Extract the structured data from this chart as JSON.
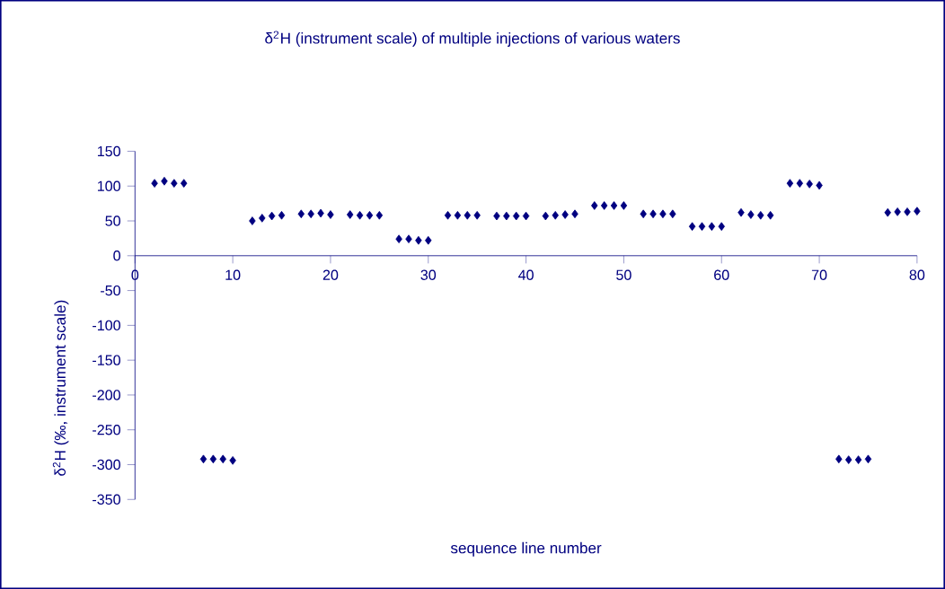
{
  "chart_data": {
    "type": "scatter",
    "title": "δ$^{2}$H (instrument scale) of multiple injections of various waters",
    "xlabel": "sequence line number",
    "ylabel": "δ$^{2}$H (‰, instrument scale)",
    "x": [
      2,
      3,
      4,
      5,
      7,
      8,
      9,
      10,
      12,
      13,
      14,
      15,
      17,
      18,
      19,
      20,
      22,
      23,
      24,
      25,
      27,
      28,
      29,
      30,
      32,
      33,
      34,
      35,
      37,
      38,
      39,
      40,
      42,
      43,
      44,
      45,
      47,
      48,
      49,
      50,
      52,
      53,
      54,
      55,
      57,
      58,
      59,
      60,
      62,
      63,
      64,
      65,
      67,
      68,
      69,
      70,
      72,
      73,
      74,
      75,
      77,
      78,
      79,
      80
    ],
    "series": [
      {
        "color": "#000080",
        "values": [
          104,
          107,
          104,
          104,
          -292,
          -292,
          -292,
          -294,
          50,
          54,
          57,
          58,
          60,
          60,
          61,
          59,
          59,
          58,
          58,
          58,
          24,
          24,
          22,
          22,
          58,
          58,
          58,
          58,
          57,
          57,
          57,
          57,
          57,
          58,
          59,
          60,
          72,
          72,
          72,
          72,
          60,
          60,
          60,
          60,
          42,
          42,
          42,
          42,
          62,
          59,
          58,
          58,
          104,
          104,
          103,
          101,
          -292,
          -293,
          -293,
          -292,
          62,
          63,
          63,
          64
        ]
      }
    ],
    "xlim": [
      0,
      80
    ],
    "xticks": [
      0,
      10,
      20,
      30,
      40,
      50,
      60,
      70,
      80
    ],
    "ylim": [
      -350,
      150
    ],
    "yticks": [
      -350,
      -300,
      -250,
      -200,
      -150,
      -100,
      -50,
      0,
      50,
      100,
      150
    ],
    "marker": "diamond",
    "grid": false
  }
}
